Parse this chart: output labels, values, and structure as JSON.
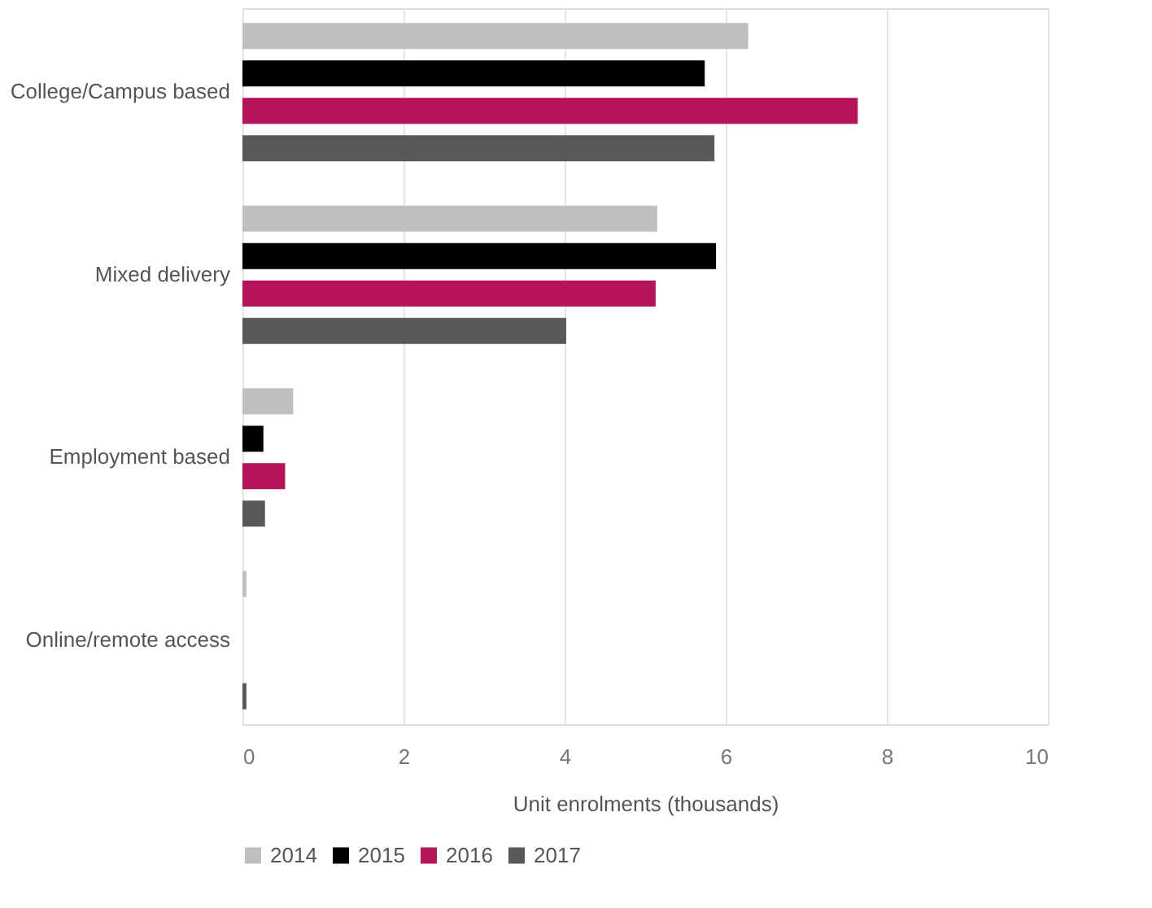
{
  "chart_data": {
    "type": "bar",
    "orientation": "horizontal",
    "xlabel": "Unit enrolments (thousands)",
    "categories": [
      "College/Campus based",
      "Mixed delivery",
      "Employment based",
      "Online/remote access"
    ],
    "series": [
      {
        "name": "2014",
        "color": "#bfbfbf",
        "values": [
          6.28,
          5.15,
          0.63,
          0.05
        ]
      },
      {
        "name": "2015",
        "color": "#000000",
        "values": [
          5.74,
          5.88,
          0.26,
          0
        ]
      },
      {
        "name": "2016",
        "color": "#b5135a",
        "values": [
          7.64,
          5.13,
          0.53,
          0
        ]
      },
      {
        "name": "2017",
        "color": "#595959",
        "values": [
          5.86,
          4.02,
          0.28,
          0.05
        ]
      }
    ],
    "xlim": [
      0,
      10
    ],
    "xticks": [
      0,
      2,
      4,
      6,
      8,
      10
    ],
    "grid": "x",
    "legend": "bottom"
  }
}
